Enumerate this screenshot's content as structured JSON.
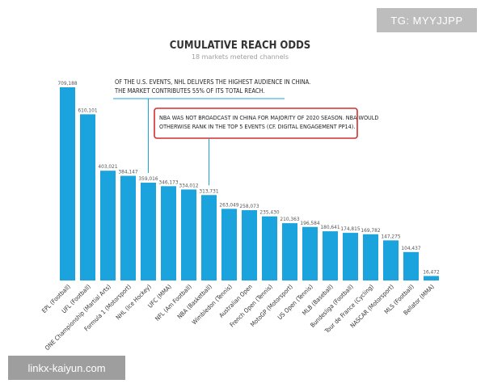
{
  "watermarks": {
    "top_right": "TG: MYYJJPP",
    "bottom_left": "linkx-kaiyun.com"
  },
  "chart_data": {
    "type": "bar",
    "title": "CUMULATIVE REACH ODDS",
    "subtitle": "18 markets metered channels",
    "categories": [
      "EPL (Football)",
      "UFL (Football)",
      "ONE Championship (Martial Arts)",
      "Formula 1 (Motorsport)",
      "NHL (Ice Hockey)",
      "UFC (MMA)",
      "NFL (Am Football)",
      "NBA (Basketball)",
      "Wimbledon (Tennis)",
      "Australian Open",
      "French Open (Tennis)",
      "MotoGP (Motorsport)",
      "US Open (Tennis)",
      "MLB (Baseball)",
      "Bundesliga (Football)",
      "Tour de France (Cycling)",
      "NASCAR (Motorsport)",
      "MLS (Football)",
      "Bellator (MMA)"
    ],
    "value_labels": [
      "709,188",
      "610,101",
      "403,021",
      "384,147",
      "359,016",
      "346,173",
      "334,012",
      "313,731",
      "263,049",
      "258,073",
      "235,430",
      "210,363",
      "196,584",
      "180,641",
      "174,815",
      "169,782",
      "147,275",
      "104,437",
      "16,472"
    ],
    "values": [
      709188,
      610101,
      403021,
      384147,
      359016,
      346173,
      334012,
      313731,
      263049,
      258073,
      235430,
      210363,
      196584,
      180641,
      174815,
      169782,
      147275,
      104437,
      16472
    ],
    "ylim": [
      0,
      720000
    ],
    "color": "#1aa3dd",
    "annotations": [
      {
        "lines": [
          "OF THE U.S. EVENTS, NHL DELIVERS THE HIGHEST AUDIENCE IN CHINA.",
          "THE MARKET CONTRIBUTES 55% OF ITS TOTAL REACH."
        ],
        "target": "NHL (Ice Hockey)"
      },
      {
        "lines": [
          "NBA WAS NOT BROADCAST IN CHINA FOR MAJORITY OF 2020 SEASON. NBA WOULD",
          "OTHERWISE RANK IN THE TOP 5 EVENTS (CF. DIGITAL ENGAGEMENT PP14)."
        ],
        "target": "NBA (Basketball)",
        "boxed": true,
        "box_color": "#d32f2f"
      }
    ]
  }
}
